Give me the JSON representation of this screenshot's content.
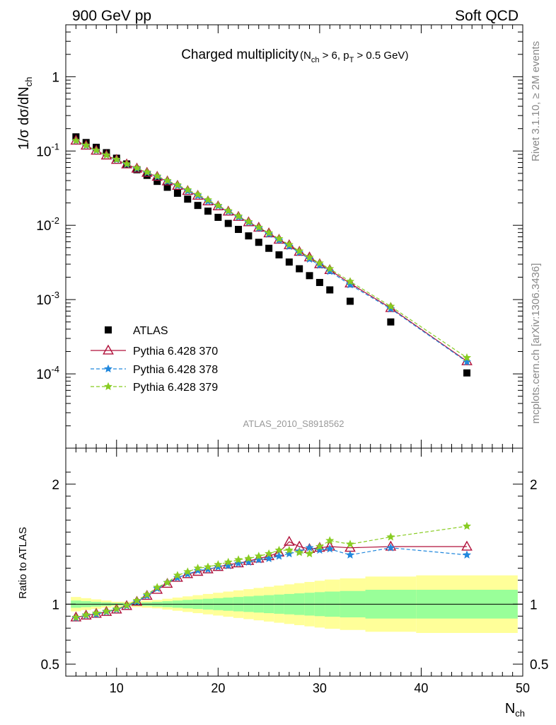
{
  "header": {
    "left": "900 GeV pp",
    "right": "Soft QCD"
  },
  "side_labels": {
    "rivet": "Rivet 3.1.10, ≥ 2M events",
    "mcplots": "mcplots.cern.ch [arXiv:1306.3436]"
  },
  "chart_data": {
    "type": "scatter",
    "title": "Charged multiplicity",
    "title_cut": "(N_ch > 6, p_T > 0.5 GeV)",
    "analysis": "ATLAS_2010_S8918562",
    "xlabel": "N_ch",
    "ylabel_main": "1/σ dσ/dN_ch",
    "ylabel_ratio": "Ratio to ATLAS",
    "xlim": [
      5,
      50
    ],
    "ylim_main": [
      1e-05,
      5
    ],
    "yscale_main": "log",
    "ylim_ratio": [
      0.4,
      2.3
    ],
    "x_ticks": [
      10,
      20,
      30,
      40,
      50
    ],
    "y_ticks_main": [
      "1",
      "10^-1",
      "10^-2",
      "10^-3",
      "10^-4"
    ],
    "y_ticks_ratio": [
      "2",
      "1",
      "0.5"
    ],
    "legend_position": "lower-left",
    "x": [
      6,
      7,
      8,
      9,
      10,
      11,
      12,
      13,
      14,
      15,
      16,
      17,
      18,
      19,
      20,
      21,
      22,
      23,
      24,
      25,
      26,
      27,
      28,
      29,
      30,
      31,
      33,
      37,
      44.5
    ],
    "series": [
      {
        "name": "ATLAS",
        "color": "#000000",
        "marker": "square",
        "values": [
          0.155,
          0.13,
          0.112,
          0.095,
          0.08,
          0.067,
          0.056,
          0.047,
          0.039,
          0.0325,
          0.027,
          0.0225,
          0.0185,
          0.0155,
          0.0128,
          0.0106,
          0.0088,
          0.0072,
          0.0059,
          0.0049,
          0.004,
          0.0032,
          0.0026,
          0.0021,
          0.0017,
          0.00135,
          0.00095,
          0.0005,
          0.000103
        ]
      },
      {
        "name": "Pythia 6.428 370",
        "color": "#b0103a",
        "marker": "triangle-open",
        "values": [
          0.138,
          0.118,
          0.101,
          0.087,
          0.076,
          0.066,
          0.058,
          0.051,
          0.045,
          0.039,
          0.034,
          0.029,
          0.025,
          0.021,
          0.018,
          0.0153,
          0.013,
          0.011,
          0.0093,
          0.0078,
          0.0064,
          0.0054,
          0.0044,
          0.0037,
          0.003,
          0.0025,
          0.00165,
          0.00077,
          0.000148
        ]
      },
      {
        "name": "Pythia 6.428 378",
        "color": "#2288dd",
        "marker": "star",
        "values": [
          0.137,
          0.118,
          0.101,
          0.088,
          0.076,
          0.066,
          0.058,
          0.051,
          0.045,
          0.039,
          0.034,
          0.029,
          0.025,
          0.021,
          0.0181,
          0.0153,
          0.0129,
          0.0109,
          0.0091,
          0.0076,
          0.0063,
          0.0052,
          0.0043,
          0.0035,
          0.0029,
          0.0024,
          0.00158,
          0.00075,
          0.000145
        ]
      },
      {
        "name": "Pythia 6.428 379",
        "color": "#88cc22",
        "marker": "star",
        "values": [
          0.138,
          0.119,
          0.102,
          0.088,
          0.077,
          0.067,
          0.059,
          0.052,
          0.046,
          0.04,
          0.035,
          0.03,
          0.026,
          0.022,
          0.0185,
          0.0157,
          0.0133,
          0.0112,
          0.0094,
          0.0079,
          0.0066,
          0.0055,
          0.0045,
          0.0037,
          0.0031,
          0.0026,
          0.00175,
          0.00081,
          0.000165
        ]
      }
    ],
    "ratio_series": [
      {
        "name": "Pythia 6.428 370",
        "values": [
          0.89,
          0.905,
          0.92,
          0.935,
          0.955,
          0.985,
          1.02,
          1.07,
          1.12,
          1.17,
          1.22,
          1.25,
          1.27,
          1.29,
          1.31,
          1.33,
          1.34,
          1.36,
          1.38,
          1.4,
          1.43,
          1.52,
          1.48,
          1.46,
          1.47,
          1.48,
          1.47,
          1.48,
          1.48
        ]
      },
      {
        "name": "Pythia 6.428 378",
        "values": [
          0.885,
          0.905,
          0.915,
          0.935,
          0.955,
          0.985,
          1.02,
          1.07,
          1.13,
          1.18,
          1.22,
          1.25,
          1.28,
          1.29,
          1.31,
          1.32,
          1.34,
          1.35,
          1.37,
          1.38,
          1.4,
          1.42,
          1.44,
          1.47,
          1.45,
          1.46,
          1.41,
          1.47,
          1.41
        ]
      },
      {
        "name": "Pythia 6.428 379",
        "values": [
          0.89,
          0.91,
          0.925,
          0.94,
          0.96,
          0.99,
          1.03,
          1.08,
          1.14,
          1.18,
          1.24,
          1.27,
          1.3,
          1.31,
          1.33,
          1.35,
          1.37,
          1.38,
          1.4,
          1.42,
          1.45,
          1.45,
          1.43,
          1.42,
          1.48,
          1.53,
          1.5,
          1.56,
          1.65
        ]
      }
    ],
    "ratio_bands": {
      "bin_edges": [
        5.5,
        6.5,
        7.5,
        8.5,
        9.5,
        10.5,
        11.5,
        12.5,
        13.5,
        14.5,
        15.5,
        16.5,
        17.5,
        18.5,
        19.5,
        20.5,
        21.5,
        22.5,
        23.5,
        24.5,
        25.5,
        26.5,
        27.5,
        28.5,
        29.5,
        30.5,
        32,
        34.5,
        39.5,
        49.5
      ],
      "inner": [
        0.03,
        0.025,
        0.02,
        0.015,
        0.01,
        0.01,
        0.012,
        0.015,
        0.02,
        0.025,
        0.03,
        0.035,
        0.04,
        0.045,
        0.05,
        0.055,
        0.06,
        0.065,
        0.07,
        0.075,
        0.08,
        0.085,
        0.09,
        0.095,
        0.1,
        0.105,
        0.11,
        0.12,
        0.12
      ],
      "outer": [
        0.06,
        0.05,
        0.04,
        0.03,
        0.02,
        0.02,
        0.025,
        0.03,
        0.035,
        0.045,
        0.055,
        0.065,
        0.075,
        0.085,
        0.095,
        0.105,
        0.115,
        0.125,
        0.135,
        0.145,
        0.155,
        0.165,
        0.175,
        0.185,
        0.195,
        0.205,
        0.215,
        0.23,
        0.24
      ],
      "inner_color": "#99ff99",
      "outer_color": "#ffff99"
    }
  }
}
